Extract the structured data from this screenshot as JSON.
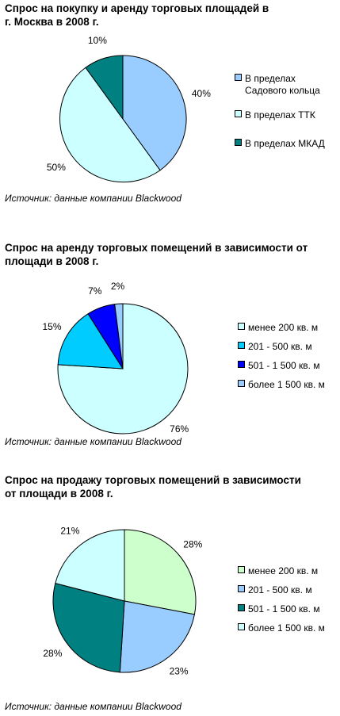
{
  "chart_data": [
    {
      "type": "pie",
      "title": "Спрос на покупку и аренду торговых площадей в\nг. Москва в 2008 г.",
      "labels": [
        "В пределах\nСадового кольца",
        "В пределах ТТК",
        "В пределах МКАД"
      ],
      "values": [
        40,
        50,
        10
      ],
      "value_labels": [
        "40%",
        "50%",
        "10%"
      ],
      "colors": [
        "#99ccff",
        "#ccffff",
        "#008080"
      ],
      "legend_position": "right",
      "source": "Источник: данные компании Blackwood"
    },
    {
      "type": "pie",
      "title": "Спрос на аренду торговых помещений в зависимости от\nплощади в 2008 г.",
      "labels": [
        "менее 200 кв. м",
        "201 - 500 кв. м",
        "501 - 1 500 кв. м",
        "более 1 500 кв. м"
      ],
      "values": [
        76,
        15,
        7,
        2
      ],
      "value_labels": [
        "76%",
        "15%",
        "7%",
        "2%"
      ],
      "colors": [
        "#ccffff",
        "#00ccff",
        "#0000ff",
        "#99ccff"
      ],
      "legend_position": "right",
      "source": "Источник: данные компании Blackwood"
    },
    {
      "type": "pie",
      "title": "Спрос на продажу торговых помещений в зависимости\nот площади в 2008 г.",
      "labels": [
        "менее 200 кв. м",
        "201 - 500 кв. м",
        "501 - 1 500 кв. м",
        "более 1 500 кв. м"
      ],
      "values": [
        28,
        23,
        28,
        21
      ],
      "value_labels": [
        "28%",
        "23%",
        "28%",
        "21%"
      ],
      "colors": [
        "#ccffcc",
        "#99ccff",
        "#008080",
        "#ccffff"
      ],
      "legend_position": "right",
      "source": "Источник: данные компании Blackwood"
    }
  ]
}
